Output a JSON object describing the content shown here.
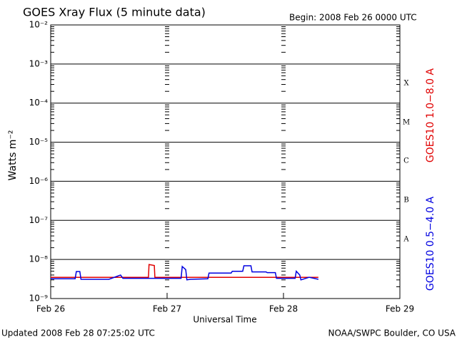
{
  "chart_data": {
    "type": "line",
    "title": "GOES Xray Flux (5 minute data)",
    "subtitle": "Begin:  2008 Feb 26 0000 UTC",
    "x_label": "Universal Time",
    "y_label": "Watts m⁻²",
    "footer_left": "Updated 2008 Feb 28 07:25:02 UTC",
    "footer_right": "NOAA/SWPC Boulder, CO USA",
    "class_labels": [
      "X",
      "M",
      "C",
      "B",
      "A"
    ],
    "log_y": true,
    "xlim": [
      0,
      3
    ],
    "xticks": [
      {
        "value": 0,
        "label": "Feb 26"
      },
      {
        "value": 1,
        "label": "Feb 27"
      },
      {
        "value": 2,
        "label": "Feb 28"
      },
      {
        "value": 3,
        "label": "Feb 29"
      }
    ],
    "ylim": [
      1e-09,
      0.01
    ],
    "yticks": [
      {
        "value": 1e-09,
        "label": "10⁻⁹"
      },
      {
        "value": 1e-08,
        "label": "10⁻⁸"
      },
      {
        "value": 1e-07,
        "label": "10⁻⁷"
      },
      {
        "value": 1e-06,
        "label": "10⁻⁶"
      },
      {
        "value": 1e-05,
        "label": "10⁻⁵"
      },
      {
        "value": 0.0001,
        "label": "10⁻⁴"
      },
      {
        "value": 0.001,
        "label": "10⁻³"
      },
      {
        "value": 0.01,
        "label": "10⁻²"
      }
    ],
    "series": [
      {
        "name": "GOES10 1.0−8.0 A",
        "color": "#e00000",
        "x": [
          0,
          0.5,
          0.84,
          0.845,
          0.89,
          0.895,
          1.0,
          1.5,
          2.0,
          2.3
        ],
        "values": [
          3.5e-09,
          3.5e-09,
          3.5e-09,
          7.4e-09,
          7e-09,
          3.5e-09,
          3.5e-09,
          3.5e-09,
          3.5e-09,
          3.5e-09
        ]
      },
      {
        "name": "GOES10 0.5−4.0 A",
        "color": "#0000e0",
        "x": [
          0,
          0.21,
          0.22,
          0.25,
          0.26,
          0.5,
          0.6,
          0.62,
          0.9,
          1.0,
          1.12,
          1.13,
          1.16,
          1.17,
          1.2,
          1.35,
          1.36,
          1.55,
          1.56,
          1.65,
          1.66,
          1.72,
          1.73,
          1.85,
          1.86,
          1.93,
          1.94,
          2.1,
          2.11,
          2.14,
          2.15,
          2.22,
          2.3
        ],
        "values": [
          3.2e-09,
          3.2e-09,
          4.9e-09,
          4.9e-09,
          3.1e-09,
          3.1e-09,
          4e-09,
          3.3e-09,
          3.3e-09,
          3.3e-09,
          3.3e-09,
          6.6e-09,
          5.5e-09,
          3e-09,
          3.1e-09,
          3.2e-09,
          4.5e-09,
          4.5e-09,
          5e-09,
          5e-09,
          6.9e-09,
          6.9e-09,
          4.8e-09,
          4.8e-09,
          4.6e-09,
          4.6e-09,
          3.3e-09,
          3.3e-09,
          5e-09,
          4e-09,
          3e-09,
          3.5e-09,
          3.1e-09
        ]
      }
    ]
  }
}
